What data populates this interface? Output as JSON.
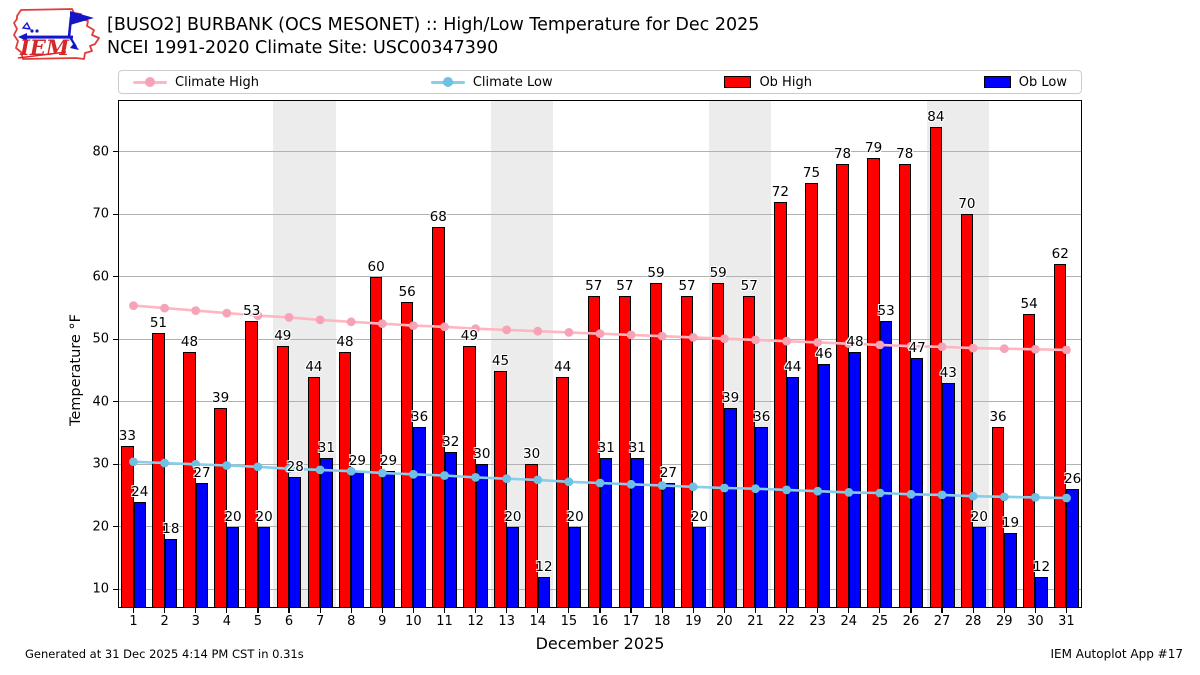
{
  "header": {
    "logo_text": "IEM",
    "title_line1": "[BUSO2] BURBANK (OCS MESONET) :: High/Low Temperature for Dec 2025",
    "title_line2": "NCEI 1991-2020 Climate Site: USC00347390"
  },
  "legend": {
    "climate_high": {
      "label": "Climate High",
      "color": "#FFB6C1"
    },
    "climate_low": {
      "label": "Climate Low",
      "color": "#87CEEB"
    },
    "ob_high": {
      "label": "Ob High",
      "color": "#FF0000"
    },
    "ob_low": {
      "label": "Ob Low",
      "color": "#0000FF"
    }
  },
  "chart_data": {
    "type": "bar",
    "title": "[BUSO2] BURBANK (OCS MESONET) :: High/Low Temperature for Dec 2025",
    "subtitle": "NCEI 1991-2020 Climate Site: USC00347390",
    "xlabel": "December 2025",
    "ylabel": "Temperature °F",
    "days": [
      1,
      2,
      3,
      4,
      5,
      6,
      7,
      8,
      9,
      10,
      11,
      12,
      13,
      14,
      15,
      16,
      17,
      18,
      19,
      20,
      21,
      22,
      23,
      24,
      25,
      26,
      27,
      28,
      29,
      30,
      31
    ],
    "ylim": [
      7.0,
      88.3
    ],
    "yticks": [
      10,
      20,
      30,
      40,
      50,
      60,
      70,
      80
    ],
    "grid": "horizontal",
    "legend_position": "top",
    "weekend_shade_day_pairs": [
      [
        6,
        7
      ],
      [
        13,
        14
      ],
      [
        20,
        21
      ],
      [
        27,
        28
      ]
    ],
    "weekend_band_color": "#ececec",
    "series": [
      {
        "name": "Ob High",
        "type": "bar",
        "color": "#FF0000",
        "values": [
          33,
          51,
          48,
          39,
          53,
          49,
          44,
          48,
          60,
          56,
          68,
          49,
          45,
          30,
          44,
          57,
          57,
          59,
          57,
          59,
          57,
          72,
          75,
          78,
          79,
          78,
          84,
          70,
          36,
          54,
          62
        ]
      },
      {
        "name": "Ob Low",
        "type": "bar",
        "color": "#0000FF",
        "values": [
          24,
          18,
          27,
          20,
          20,
          28,
          31,
          29,
          29,
          36,
          32,
          30,
          20,
          12,
          20,
          31,
          31,
          27,
          20,
          39,
          36,
          44,
          46,
          48,
          53,
          47,
          43,
          20,
          19,
          12,
          26
        ]
      },
      {
        "name": "Climate High",
        "type": "line",
        "color": "#FFB6C1",
        "marker_color": "#F5A3B5",
        "values": [
          55.4,
          55.0,
          54.6,
          54.2,
          53.8,
          53.5,
          53.1,
          52.8,
          52.5,
          52.2,
          52.0,
          51.7,
          51.5,
          51.3,
          51.1,
          50.9,
          50.7,
          50.5,
          50.3,
          50.1,
          49.9,
          49.7,
          49.5,
          49.3,
          49.1,
          48.9,
          48.8,
          48.6,
          48.5,
          48.4,
          48.3
        ]
      },
      {
        "name": "Climate Low",
        "type": "line",
        "color": "#87CEEB",
        "marker_color": "#6FC0E2",
        "values": [
          30.4,
          30.2,
          30.0,
          29.8,
          29.6,
          29.3,
          29.1,
          28.9,
          28.6,
          28.4,
          28.2,
          27.9,
          27.7,
          27.5,
          27.2,
          27.0,
          26.8,
          26.6,
          26.4,
          26.2,
          26.1,
          25.9,
          25.7,
          25.5,
          25.4,
          25.2,
          25.1,
          24.9,
          24.8,
          24.7,
          24.6
        ]
      }
    ]
  },
  "footer": {
    "left": "Generated at 31 Dec 2025 4:14 PM CST in 0.31s",
    "right": "IEM Autoplot App #17"
  }
}
